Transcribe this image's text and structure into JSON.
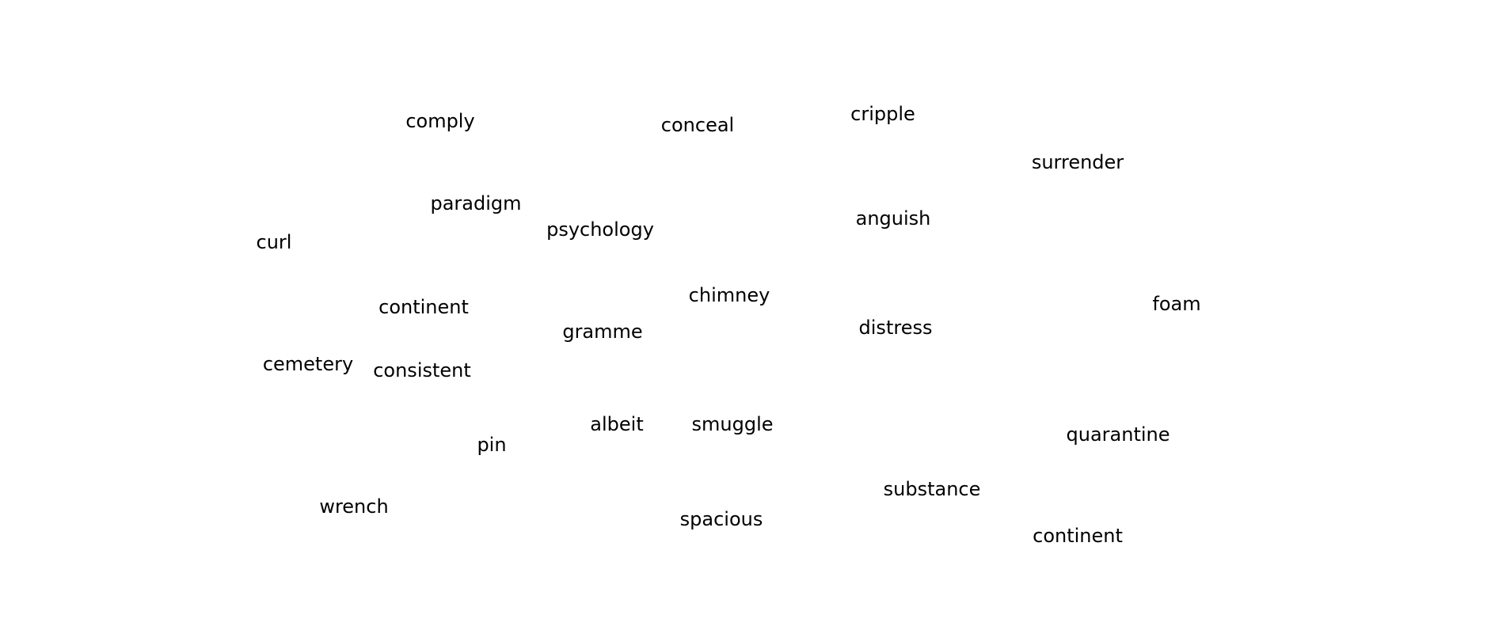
{
  "words": [
    "comply",
    "conceal",
    "cripple",
    "surrender",
    "paradigm",
    "psychology",
    "anguish",
    "curl",
    "chimney",
    "foam",
    "continent",
    "gramme",
    "distress",
    "cemetery",
    "consistent",
    "albeit",
    "smuggle",
    "quarantine",
    "pin",
    "substance",
    "wrench",
    "spacious",
    "continent"
  ]
}
